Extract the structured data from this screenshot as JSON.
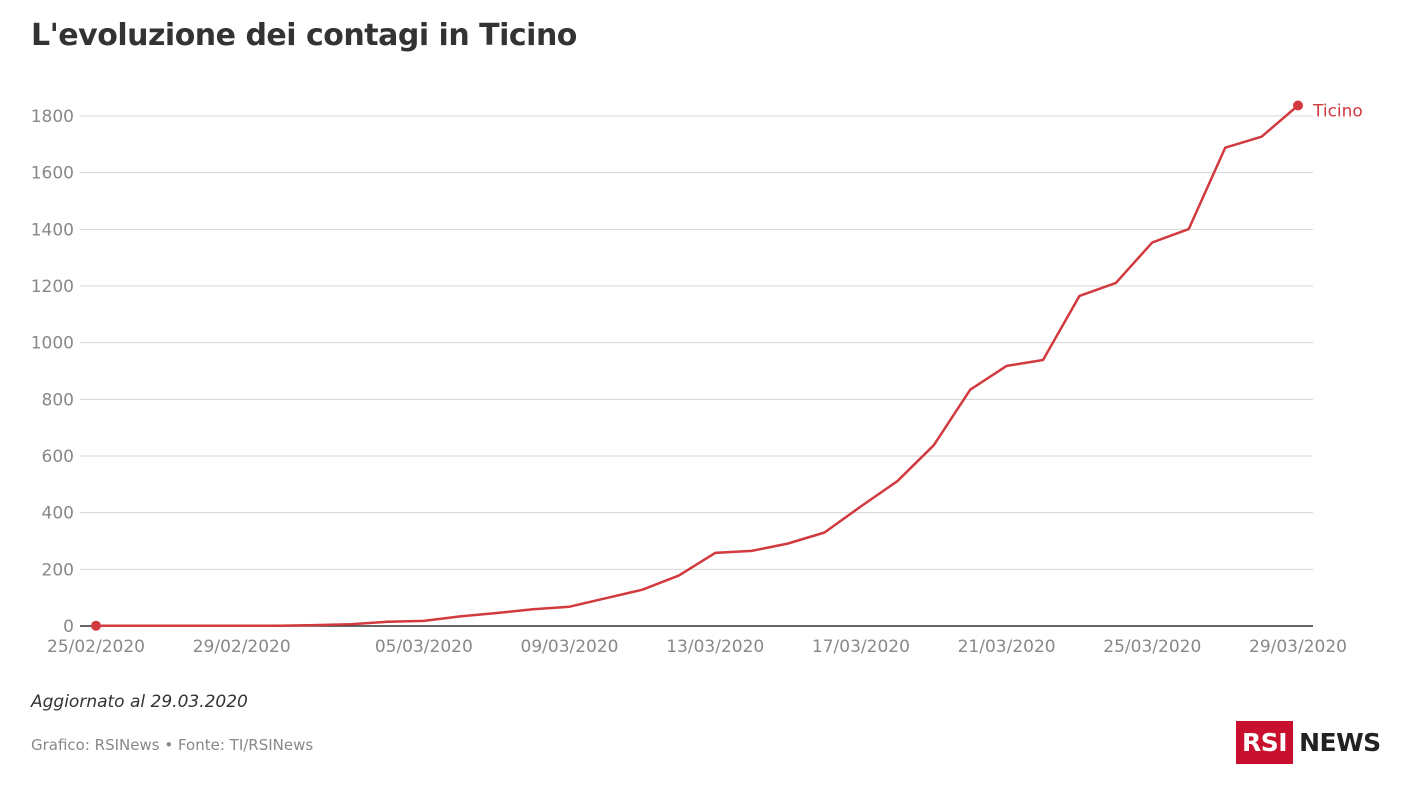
{
  "title": "L'evoluzione dei contagi in Ticino",
  "note": "Aggiornato al 29.03.2020",
  "source": "Grafico: RSINews • Fonte: TI/RSINews",
  "logo": {
    "box_text": "RSI",
    "word": "NEWS"
  },
  "colors": {
    "series": "#d13a3f",
    "grid": "#d4d4d4",
    "axis": "#333333",
    "ticks": "#888888",
    "brand": "#c8102e"
  },
  "chart_data": {
    "type": "line",
    "title": "L'evoluzione dei contagi in Ticino",
    "xlabel": "",
    "ylabel": "",
    "ylim": [
      0,
      1800
    ],
    "y_ticks": [
      0,
      200,
      400,
      600,
      800,
      1000,
      1200,
      1400,
      1600,
      1800
    ],
    "grid": true,
    "x_tick_labels": [
      "25/02/2020",
      "29/02/2020",
      "05/03/2020",
      "09/03/2020",
      "13/03/2020",
      "17/03/2020",
      "21/03/2020",
      "25/03/2020",
      "29/03/2020"
    ],
    "series": [
      {
        "name": "Ticino",
        "x": [
          "25/02/2020",
          "26/02/2020",
          "27/02/2020",
          "28/02/2020",
          "29/02/2020",
          "01/03/2020",
          "02/03/2020",
          "03/03/2020",
          "04/03/2020",
          "05/03/2020",
          "06/03/2020",
          "07/03/2020",
          "08/03/2020",
          "09/03/2020",
          "10/03/2020",
          "11/03/2020",
          "12/03/2020",
          "13/03/2020",
          "14/03/2020",
          "15/03/2020",
          "16/03/2020",
          "17/03/2020",
          "18/03/2020",
          "19/03/2020",
          "20/03/2020",
          "21/03/2020",
          "22/03/2020",
          "23/03/2020",
          "24/03/2020",
          "25/03/2020",
          "26/03/2020",
          "27/03/2020",
          "28/03/2020",
          "29/03/2020"
        ],
        "values": [
          1,
          1,
          1,
          1,
          1,
          1,
          3,
          6,
          15,
          18,
          34,
          46,
          59,
          68,
          98,
          128,
          178,
          258,
          265,
          291,
          330,
          422,
          511,
          638,
          834,
          918,
          939,
          1165,
          1211,
          1354,
          1401,
          1688,
          1727,
          1837
        ]
      }
    ]
  }
}
